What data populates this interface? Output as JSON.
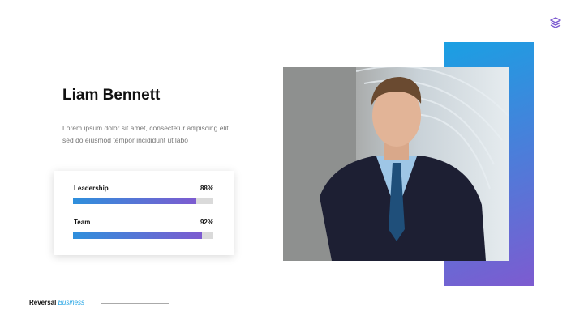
{
  "person": {
    "name": "Liam Bennett",
    "description": "Lorem ipsum dolor sit amet, consectetur adipiscing elit sed do eiusmod tempor incididunt ut labo"
  },
  "skills": [
    {
      "label": "Leadership",
      "value_text": "88%",
      "value": 88
    },
    {
      "label": "Team",
      "value_text": "92%",
      "value": 92
    }
  ],
  "footer": {
    "brand": "Reversal",
    "brand_accent": "Business"
  },
  "icons": {
    "top_right": "layers-icon"
  },
  "colors": {
    "gradient_start": "#1aa0e3",
    "gradient_end": "#7d5bd0"
  }
}
